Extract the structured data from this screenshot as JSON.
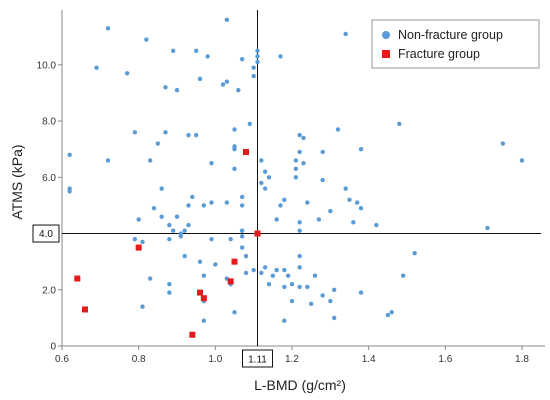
{
  "chart_data": {
    "type": "scatter",
    "xlabel": "L-BMD (g/cm²)",
    "ylabel": "ATMS (kPa)",
    "xlim": [
      0.6,
      1.86
    ],
    "ylim": [
      0,
      11.95
    ],
    "x_ticks": [
      {
        "value": 0.6,
        "label": "0.6"
      },
      {
        "value": 0.8,
        "label": "0.8"
      },
      {
        "value": 1.0,
        "label": "1.0"
      },
      {
        "value": 1.2,
        "label": "1.2"
      },
      {
        "value": 1.4,
        "label": "1.4"
      },
      {
        "value": 1.6,
        "label": "1.6"
      },
      {
        "value": 1.8,
        "label": "1.8"
      }
    ],
    "y_ticks": [
      {
        "value": 0,
        "label": "0"
      },
      {
        "value": 2.0,
        "label": "2.0"
      },
      {
        "value": 6.0,
        "label": "6.0"
      },
      {
        "value": 8.0,
        "label": "8.0"
      },
      {
        "value": 10.0,
        "label": "10.0"
      }
    ],
    "reference_lines": {
      "x": {
        "value": 1.11,
        "label": "1.11"
      },
      "y": {
        "value": 4.0,
        "label": "4.0"
      }
    },
    "grid": false,
    "legend": {
      "position": "top-right",
      "entries": [
        "Non-fracture group",
        "Fracture group"
      ]
    },
    "series": [
      {
        "name": "Non-fracture group",
        "marker": "circle",
        "color": "#5b9bd5",
        "points": [
          [
            0.62,
            6.8
          ],
          [
            0.62,
            5.6
          ],
          [
            0.62,
            5.5
          ],
          [
            0.72,
            11.3
          ],
          [
            0.69,
            9.9
          ],
          [
            0.72,
            6.6
          ],
          [
            0.77,
            9.7
          ],
          [
            0.79,
            7.6
          ],
          [
            0.79,
            3.8
          ],
          [
            0.8,
            4.5
          ],
          [
            0.81,
            3.7
          ],
          [
            0.81,
            1.4
          ],
          [
            0.82,
            10.9
          ],
          [
            0.83,
            6.6
          ],
          [
            0.85,
            7.2
          ],
          [
            0.84,
            4.9
          ],
          [
            0.86,
            5.6
          ],
          [
            0.87,
            9.2
          ],
          [
            0.87,
            7.6
          ],
          [
            0.86,
            4.6
          ],
          [
            0.88,
            4.3
          ],
          [
            0.88,
            3.8
          ],
          [
            0.88,
            2.2
          ],
          [
            0.88,
            1.9
          ],
          [
            0.83,
            2.4
          ],
          [
            0.89,
            10.5
          ],
          [
            0.89,
            4.1
          ],
          [
            0.9,
            9.1
          ],
          [
            0.9,
            4.6
          ],
          [
            0.91,
            4.0
          ],
          [
            0.91,
            3.9
          ],
          [
            0.92,
            4.1
          ],
          [
            0.92,
            3.2
          ],
          [
            0.93,
            7.5
          ],
          [
            0.93,
            5.0
          ],
          [
            0.93,
            4.3
          ],
          [
            0.94,
            5.3
          ],
          [
            0.95,
            7.5
          ],
          [
            0.95,
            10.5
          ],
          [
            0.96,
            9.5
          ],
          [
            0.96,
            3.0
          ],
          [
            0.97,
            5.0
          ],
          [
            0.97,
            2.5
          ],
          [
            0.98,
            10.3
          ],
          [
            0.99,
            6.5
          ],
          [
            0.99,
            5.1
          ],
          [
            0.99,
            3.8
          ],
          [
            1.0,
            2.9
          ],
          [
            0.97,
            1.6
          ],
          [
            0.97,
            0.9
          ],
          [
            1.02,
            9.3
          ],
          [
            1.03,
            11.6
          ],
          [
            1.03,
            9.4
          ],
          [
            1.03,
            5.1
          ],
          [
            1.04,
            3.8
          ],
          [
            1.04,
            2.2
          ],
          [
            1.05,
            7.7
          ],
          [
            1.05,
            7.1
          ],
          [
            1.05,
            7.0
          ],
          [
            1.05,
            6.3
          ],
          [
            1.06,
            9.1
          ],
          [
            1.07,
            10.2
          ],
          [
            1.07,
            5.3
          ],
          [
            1.07,
            5.0
          ],
          [
            1.07,
            4.1
          ],
          [
            1.07,
            3.9
          ],
          [
            1.07,
            3.5
          ],
          [
            1.08,
            3.2
          ],
          [
            1.08,
            2.6
          ],
          [
            1.05,
            1.2
          ],
          [
            1.03,
            2.4
          ],
          [
            1.09,
            7.9
          ],
          [
            1.1,
            9.9
          ],
          [
            1.1,
            9.6
          ],
          [
            1.1,
            2.7
          ],
          [
            1.11,
            10.5
          ],
          [
            1.11,
            10.3
          ],
          [
            1.11,
            10.1
          ],
          [
            1.12,
            6.6
          ],
          [
            1.12,
            5.8
          ],
          [
            1.12,
            2.6
          ],
          [
            1.13,
            6.2
          ],
          [
            1.13,
            5.6
          ],
          [
            1.13,
            2.8
          ],
          [
            1.14,
            6.0
          ],
          [
            1.15,
            2.5
          ],
          [
            1.14,
            2.2
          ],
          [
            1.16,
            4.5
          ],
          [
            1.16,
            2.7
          ],
          [
            1.17,
            10.3
          ],
          [
            1.17,
            5.0
          ],
          [
            1.18,
            5.2
          ],
          [
            1.18,
            2.7
          ],
          [
            1.18,
            2.1
          ],
          [
            1.18,
            0.9
          ],
          [
            1.19,
            2.5
          ],
          [
            1.2,
            2.2
          ],
          [
            1.2,
            1.6
          ],
          [
            1.21,
            6.3
          ],
          [
            1.21,
            6.0
          ],
          [
            1.21,
            6.6
          ],
          [
            1.22,
            7.5
          ],
          [
            1.22,
            6.9
          ],
          [
            1.22,
            4.4
          ],
          [
            1.22,
            4.1
          ],
          [
            1.22,
            3.2
          ],
          [
            1.22,
            2.8
          ],
          [
            1.22,
            2.1
          ],
          [
            1.23,
            7.4
          ],
          [
            1.23,
            6.5
          ],
          [
            1.24,
            5.1
          ],
          [
            1.24,
            2.1
          ],
          [
            1.25,
            1.5
          ],
          [
            1.26,
            2.5
          ],
          [
            1.27,
            4.5
          ],
          [
            1.28,
            5.9
          ],
          [
            1.28,
            6.9
          ],
          [
            1.28,
            1.8
          ],
          [
            1.3,
            4.8
          ],
          [
            1.3,
            1.6
          ],
          [
            1.31,
            2.0
          ],
          [
            1.31,
            1.0
          ],
          [
            1.32,
            7.7
          ],
          [
            1.34,
            5.6
          ],
          [
            1.34,
            11.1
          ],
          [
            1.35,
            5.2
          ],
          [
            1.36,
            4.4
          ],
          [
            1.37,
            5.1
          ],
          [
            1.38,
            7.0
          ],
          [
            1.38,
            4.9
          ],
          [
            1.38,
            1.9
          ],
          [
            1.42,
            4.3
          ],
          [
            1.45,
            1.1
          ],
          [
            1.46,
            1.2
          ],
          [
            1.48,
            7.9
          ],
          [
            1.49,
            2.5
          ],
          [
            1.52,
            3.3
          ],
          [
            1.71,
            4.2
          ],
          [
            1.75,
            7.2
          ],
          [
            1.8,
            6.6
          ]
        ]
      },
      {
        "name": "Fracture group",
        "marker": "square",
        "color": "#e41a1c",
        "points": [
          [
            0.64,
            2.4
          ],
          [
            0.66,
            1.3
          ],
          [
            0.8,
            3.5
          ],
          [
            0.94,
            0.4
          ],
          [
            0.96,
            1.9
          ],
          [
            0.97,
            1.7
          ],
          [
            1.04,
            2.3
          ],
          [
            1.05,
            3.0
          ],
          [
            1.08,
            6.9
          ],
          [
            1.11,
            4.0
          ]
        ]
      }
    ]
  }
}
